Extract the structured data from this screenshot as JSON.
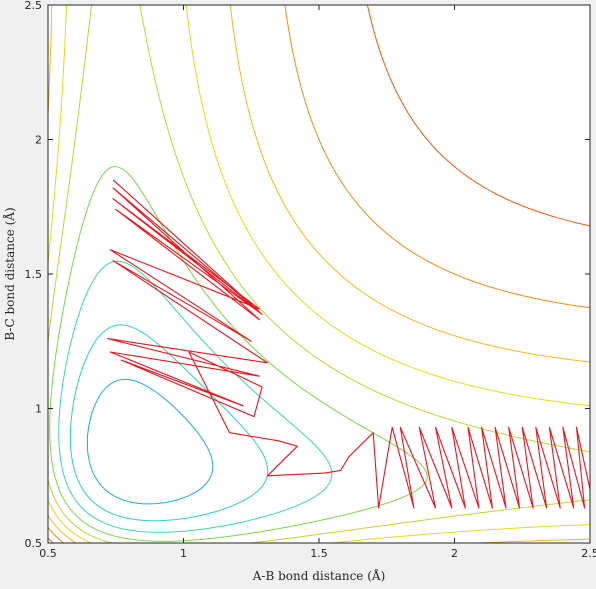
{
  "chart_data": {
    "type": "line",
    "title": "",
    "xlabel": "A-B bond distance (Å)",
    "ylabel": "B-C bond distance (Å)",
    "xlim": [
      0.5,
      2.5
    ],
    "ylim": [
      0.5,
      2.5
    ],
    "xticks": [
      {
        "value": 0.5,
        "label": "0.5"
      },
      {
        "value": 1,
        "label": "1"
      },
      {
        "value": 1.5,
        "label": "1.5"
      },
      {
        "value": 2,
        "label": "2"
      },
      {
        "value": 2.5,
        "label": "2.5"
      }
    ],
    "yticks": [
      {
        "value": 0.5,
        "label": "0.5"
      },
      {
        "value": 1,
        "label": "1"
      },
      {
        "value": 1.5,
        "label": "1.5"
      },
      {
        "value": 2,
        "label": "2"
      },
      {
        "value": 2.5,
        "label": "2.5"
      }
    ],
    "grid": false,
    "legend": "none",
    "colors": {
      "background": "#f0f0f0",
      "plot_area": "#ffffff",
      "axes": "#262626",
      "trajectory": "#e8141c",
      "contour_scale": [
        "#0a0a8c",
        "#1b2fd4",
        "#1f6fe6",
        "#21a8e8",
        "#2ccfcf",
        "#3cd6a6",
        "#7ad64a",
        "#b8d832",
        "#e8d81e",
        "#f5b820",
        "#f08a1a",
        "#e85a14",
        "#d8200e",
        "#b00c0a",
        "#880808"
      ]
    },
    "contour_levels": {
      "count": 15,
      "colormap": "jet",
      "description_of_curves": "L-shaped potential energy contours; inner levels form closed wells near (0.95,0.95), outer levels open toward large A-B and B-C distances."
    },
    "trajectory": {
      "color": "#e8141c",
      "points": [
        [
          0.74,
          1.85
        ],
        [
          1.28,
          1.36
        ],
        [
          0.74,
          1.82
        ],
        [
          1.28,
          1.33
        ],
        [
          0.75,
          1.74
        ],
        [
          1.29,
          1.35
        ],
        [
          0.74,
          1.78
        ],
        [
          1.28,
          1.37
        ],
        [
          0.73,
          1.59
        ],
        [
          1.25,
          1.25
        ],
        [
          0.74,
          1.55
        ],
        [
          1.31,
          1.17
        ],
        [
          0.72,
          1.26
        ],
        [
          1.28,
          1.12
        ],
        [
          0.73,
          1.21
        ],
        [
          1.22,
          1.01
        ],
        [
          0.77,
          1.18
        ],
        [
          1.26,
          0.97
        ],
        [
          1.29,
          1.08
        ],
        [
          1.02,
          1.21
        ],
        [
          1.17,
          0.91
        ],
        [
          1.35,
          0.88
        ],
        [
          1.42,
          0.86
        ],
        [
          1.31,
          0.75
        ],
        [
          1.52,
          0.76
        ],
        [
          1.58,
          0.77
        ],
        [
          1.61,
          0.82
        ],
        [
          1.7,
          0.91
        ],
        [
          1.72,
          0.63
        ],
        [
          1.77,
          0.93
        ],
        [
          1.85,
          0.63
        ],
        [
          1.8,
          0.93
        ],
        [
          1.93,
          0.63
        ],
        [
          1.87,
          0.93
        ],
        [
          1.99,
          0.63
        ],
        [
          1.93,
          0.93
        ],
        [
          2.04,
          0.63
        ],
        [
          1.99,
          0.93
        ],
        [
          2.09,
          0.63
        ],
        [
          2.05,
          0.93
        ],
        [
          2.14,
          0.63
        ],
        [
          2.1,
          0.93
        ],
        [
          2.19,
          0.63
        ],
        [
          2.15,
          0.93
        ],
        [
          2.24,
          0.63
        ],
        [
          2.2,
          0.93
        ],
        [
          2.29,
          0.63
        ],
        [
          2.25,
          0.93
        ],
        [
          2.34,
          0.63
        ],
        [
          2.3,
          0.93
        ],
        [
          2.39,
          0.63
        ],
        [
          2.35,
          0.93
        ],
        [
          2.44,
          0.63
        ],
        [
          2.4,
          0.93
        ],
        [
          2.48,
          0.63
        ],
        [
          2.45,
          0.93
        ],
        [
          2.5,
          0.7
        ]
      ]
    }
  }
}
